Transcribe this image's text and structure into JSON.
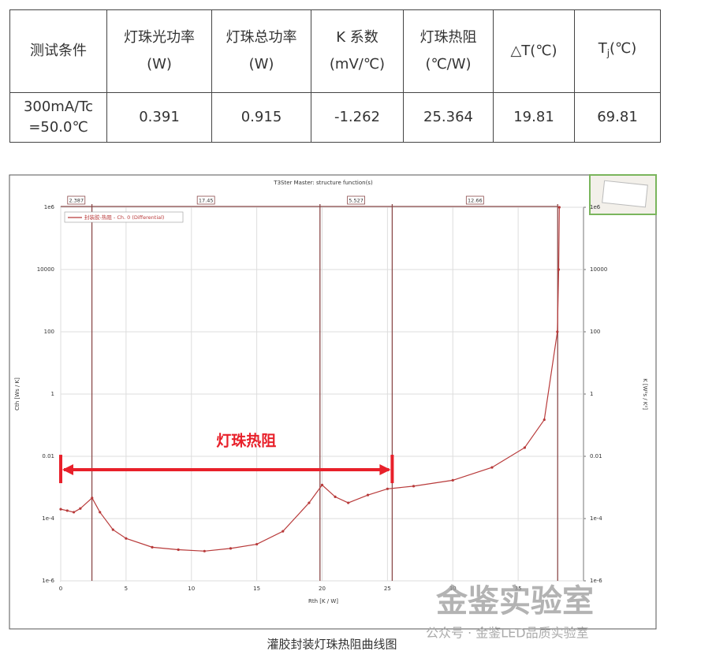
{
  "table": {
    "header": [
      [
        "测试条件"
      ],
      [
        "灯珠光功率",
        "(W)"
      ],
      [
        "灯珠总功率",
        "(W)"
      ],
      [
        "K 系数",
        "(mV/℃)"
      ],
      [
        "灯珠热阻",
        "(℃/W)"
      ],
      [
        "△T(℃)"
      ],
      {
        "base": "T",
        "sub": "j",
        "unit": "(℃)"
      }
    ],
    "rows": [
      [
        [
          "300mA/Tc",
          "=50.0℃"
        ],
        "0.391",
        "0.915",
        "-1.262",
        "25.364",
        "19.81",
        "69.81"
      ]
    ]
  },
  "chart_data": {
    "type": "line",
    "title": "T3Ster Master: structure function(s)",
    "x_label": "Rth [K / W]",
    "y_label": "Cth [Ws / K]",
    "y2_label": "K [W²s / K²]",
    "x": [
      0,
      0.5,
      1,
      1.5,
      2.4,
      3,
      4,
      5,
      7,
      9,
      11,
      13,
      15,
      17,
      19,
      20,
      21,
      22,
      23.5,
      25,
      27,
      30,
      33,
      35.5,
      37,
      38,
      38.1,
      38.15
    ],
    "series": [
      {
        "name": "封装胶-热阻 - Ch. 0 (Differential)",
        "color": "#b83a3a",
        "values": [
          0.0002,
          0.00018,
          0.00016,
          0.00021,
          0.00046,
          0.00016,
          4.4e-05,
          2.3e-05,
          1.2e-05,
          1e-05,
          9e-06,
          1.1e-05,
          1.5e-05,
          3.9e-05,
          0.00032,
          0.0012,
          0.0005,
          0.00032,
          0.00057,
          0.0009,
          0.0011,
          0.0017,
          0.0044,
          0.019,
          0.15,
          100,
          10000,
          1000000
        ]
      }
    ],
    "xlim": [
      0,
      40
    ],
    "xticks": [
      0,
      5,
      10,
      15,
      20,
      25,
      30,
      35
    ],
    "ylim": [
      1e-06,
      1000000
    ],
    "log_y": true,
    "grid": true,
    "legend": "top-left",
    "yticks": [
      {
        "value": 1e-06,
        "label": "1e-6"
      },
      {
        "value": 0.0001,
        "label": "1e-4"
      },
      0.01,
      1,
      100,
      10000,
      {
        "value": 1000000,
        "label": "1e6"
      }
    ],
    "y2lim": [
      1e-06,
      1000000
    ],
    "y2ticks": [
      {
        "value": 1e-06,
        "label": "1e-6"
      },
      {
        "value": 0.0001,
        "label": "1e-4"
      },
      0.01,
      1,
      100,
      10000,
      {
        "value": 1000000,
        "label": "1e6"
      }
    ],
    "segments": [
      2.387,
      17.45,
      5.527,
      12.66
    ],
    "annotation": {
      "text": "灯珠热阻",
      "x": [
        0,
        25.364
      ],
      "y": 0.0037,
      "color": "#e8202a"
    }
  },
  "caption": "灌胶封装灯珠热阻曲线图",
  "watermark": "金鉴实验室",
  "watermark_sub": "公众号 · 金鉴LED品质实验室"
}
